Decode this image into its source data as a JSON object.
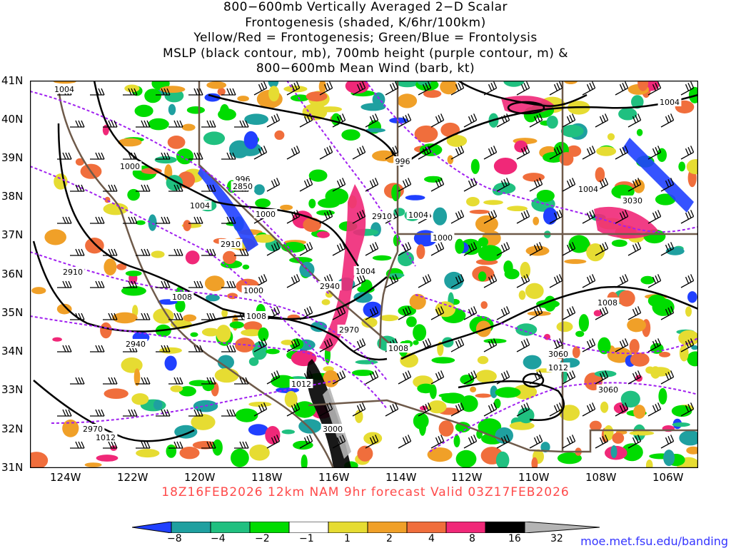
{
  "title": {
    "lines": [
      "800−600mb Vertically Averaged 2−D Scalar",
      "Frontogenesis (shaded, K/6hr/100km)",
      "Yellow/Red = Frontogenesis;  Green/Blue = Frontolysis",
      "MSLP (black contour, mb), 700mb height (purple contour, m) &",
      "800−600mb Mean Wind (barb, kt)"
    ]
  },
  "map": {
    "lat_labels": [
      "41N",
      "40N",
      "39N",
      "38N",
      "37N",
      "36N",
      "35N",
      "34N",
      "33N",
      "32N",
      "31N"
    ],
    "lon_labels": [
      "124W",
      "122W",
      "120W",
      "118W",
      "116W",
      "114W",
      "112W",
      "110W",
      "108W",
      "106W"
    ],
    "mslp_labels": [
      "1004",
      "1000",
      "996",
      "1000",
      "1000",
      "1004",
      "1004",
      "1004",
      "1008",
      "1008",
      "1008",
      "1008",
      "1012",
      "1012",
      "1004",
      "1004",
      "996",
      "1000",
      "1012"
    ],
    "height_labels": [
      "2850",
      "2910",
      "2910",
      "2910",
      "2940",
      "2940",
      "2970",
      "2970",
      "3000",
      "3030",
      "3060",
      "3060"
    ],
    "colors": {
      "mslp_contour": "#000000",
      "height_contour": "#a020f0",
      "state_borders": "#6e5a4a",
      "coastline": "#6e5a4a"
    }
  },
  "valid_line": "18Z16FEB2026 12km NAM 9hr forecast Valid 03Z17FEB2026",
  "colorbar": {
    "labels": [
      "−8",
      "−4",
      "−2",
      "−1",
      "1",
      "2",
      "4",
      "8",
      "16",
      "32"
    ],
    "colors": [
      "#2040ff",
      "#1fa0a0",
      "#20c080",
      "#00dc00",
      "#ffffff",
      "#e6dc32",
      "#f0a028",
      "#f06e3c",
      "#f02878",
      "#000000",
      "#b4b4b4"
    ]
  },
  "credit": "moe.met.fsu.edu/banding"
}
